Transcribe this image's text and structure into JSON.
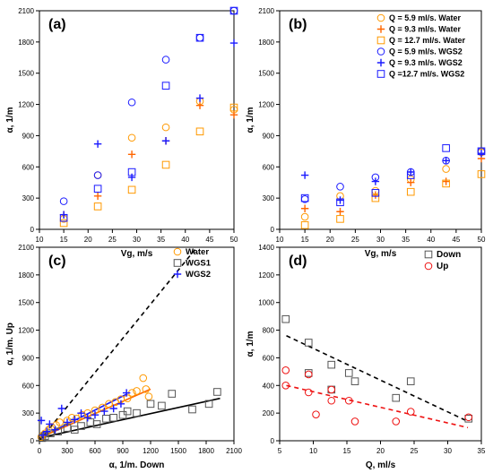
{
  "chart_data": [
    {
      "type": "scatter",
      "panel_label": "(a)",
      "xlabel": "Vg, m/s",
      "ylabel": "α, 1/m",
      "xlim": [
        10,
        50
      ],
      "ylim": [
        0,
        2100
      ],
      "xticks": [
        10,
        15,
        20,
        25,
        30,
        35,
        40,
        45,
        50
      ],
      "yticks": [
        0,
        300,
        600,
        900,
        1200,
        1500,
        1800,
        2100
      ],
      "series": [
        {
          "color": "#ff9900",
          "marker": "circle",
          "x": [
            15,
            22,
            29,
            36,
            43,
            50
          ],
          "y": [
            100,
            520,
            880,
            980,
            1230,
            1150
          ]
        },
        {
          "color": "#ff6600",
          "marker": "plus",
          "x": [
            15,
            22,
            29,
            36,
            43,
            50
          ],
          "y": [
            140,
            320,
            720,
            850,
            1190,
            1100
          ]
        },
        {
          "color": "#ff9900",
          "marker": "square",
          "x": [
            15,
            22,
            29,
            36,
            43,
            50
          ],
          "y": [
            60,
            220,
            380,
            620,
            940,
            1170
          ]
        },
        {
          "color": "#1a1aff",
          "marker": "circle",
          "x": [
            15,
            22,
            29,
            36,
            43,
            50
          ],
          "y": [
            270,
            520,
            1220,
            1630,
            1840,
            2100
          ]
        },
        {
          "color": "#1a1aff",
          "marker": "plus",
          "x": [
            15,
            22,
            29,
            36,
            43,
            50
          ],
          "y": [
            140,
            820,
            500,
            850,
            1260,
            1790
          ]
        },
        {
          "color": "#1a1aff",
          "marker": "square",
          "x": [
            15,
            22,
            29,
            36,
            43,
            50
          ],
          "y": [
            110,
            390,
            550,
            1380,
            1840,
            2100
          ]
        }
      ]
    },
    {
      "type": "scatter",
      "panel_label": "(b)",
      "xlabel": "Vg, m/s",
      "ylabel": "α, 1/m",
      "xlim": [
        10,
        50
      ],
      "ylim": [
        0,
        2100
      ],
      "xticks": [
        10,
        15,
        20,
        25,
        30,
        35,
        40,
        45,
        50
      ],
      "yticks": [
        0,
        300,
        600,
        900,
        1200,
        1500,
        1800,
        2100
      ],
      "legend_position": "top-right",
      "series": [
        {
          "name": "Q = 5.9 ml/s. Water",
          "color": "#ff9900",
          "marker": "circle",
          "x": [
            15,
            22,
            29,
            36,
            43,
            50
          ],
          "y": [
            120,
            320,
            370,
            480,
            580,
            740
          ]
        },
        {
          "name": "Q = 9.3 ml/s. Water",
          "color": "#ff6600",
          "marker": "plus",
          "x": [
            15,
            22,
            29,
            36,
            43,
            50
          ],
          "y": [
            200,
            170,
            330,
            450,
            460,
            680
          ]
        },
        {
          "name": "Q = 12.7 ml/s. Water",
          "color": "#ff9900",
          "marker": "square",
          "x": [
            15,
            22,
            29,
            36,
            43,
            50
          ],
          "y": [
            40,
            100,
            300,
            360,
            440,
            530
          ]
        },
        {
          "name": "Q = 5.9 ml/s. WGS2",
          "color": "#1a1aff",
          "marker": "circle",
          "x": [
            15,
            22,
            29,
            36,
            43,
            50
          ],
          "y": [
            290,
            410,
            500,
            550,
            660,
            750
          ]
        },
        {
          "name": "Q = 9.3 ml/s. WGS2",
          "color": "#1a1aff",
          "marker": "plus",
          "x": [
            15,
            22,
            29,
            36,
            43,
            50
          ],
          "y": [
            520,
            280,
            460,
            550,
            660,
            730
          ]
        },
        {
          "name": "Q =12.7 ml/s. WGS2",
          "color": "#1a1aff",
          "marker": "square",
          "x": [
            15,
            22,
            29,
            36,
            43,
            50
          ],
          "y": [
            300,
            260,
            350,
            520,
            780,
            750
          ]
        }
      ]
    },
    {
      "type": "scatter",
      "panel_label": "(c)",
      "xlabel": "α, 1/m. Down",
      "ylabel": "α, 1/m. Up",
      "xlim": [
        0,
        2100
      ],
      "ylim": [
        0,
        2100
      ],
      "xticks": [
        0,
        300,
        600,
        900,
        1200,
        1500,
        1800,
        2100
      ],
      "yticks": [
        0,
        300,
        600,
        900,
        1200,
        1500,
        1800,
        2100
      ],
      "legend_position": "top-right",
      "series": [
        {
          "name": "Water",
          "color": "#ff9900",
          "marker": "circle",
          "x": [
            20,
            40,
            60,
            100,
            130,
            180,
            220,
            300,
            350,
            400,
            460,
            520,
            600,
            680,
            750,
            820,
            880,
            950,
            1000,
            1050,
            1120,
            1150,
            1180
          ],
          "y": [
            40,
            60,
            80,
            120,
            150,
            170,
            200,
            220,
            250,
            240,
            280,
            300,
            330,
            360,
            400,
            420,
            450,
            460,
            520,
            540,
            680,
            560,
            480
          ]
        },
        {
          "name": "WGS1",
          "color": "#555555",
          "marker": "square",
          "x": [
            30,
            60,
            120,
            200,
            300,
            380,
            450,
            550,
            620,
            720,
            800,
            900,
            950,
            1050,
            1200,
            1320,
            1430,
            1650,
            1830,
            1920
          ],
          "y": [
            30,
            50,
            80,
            100,
            140,
            120,
            160,
            200,
            180,
            240,
            250,
            280,
            320,
            300,
            400,
            380,
            510,
            340,
            400,
            530
          ]
        },
        {
          "name": "WGS2",
          "color": "#1a1aff",
          "marker": "plus",
          "x": [
            20,
            40,
            80,
            110,
            170,
            240,
            300,
            380,
            450,
            520,
            600,
            700,
            800,
            880,
            940
          ],
          "y": [
            220,
            60,
            100,
            180,
            120,
            350,
            200,
            230,
            300,
            250,
            280,
            320,
            350,
            400,
            520
          ]
        }
      ],
      "lines": [
        {
          "style": "dashed",
          "color": "#000000",
          "x": [
            0,
            1700
          ],
          "y": [
            0,
            2100
          ]
        },
        {
          "style": "solid",
          "color": "#1a1aff",
          "x": [
            0,
            950
          ],
          "y": [
            30,
            510
          ]
        },
        {
          "style": "solid",
          "color": "#ff6600",
          "x": [
            0,
            1200
          ],
          "y": [
            30,
            560
          ]
        },
        {
          "style": "solid",
          "color": "#000000",
          "x": [
            0,
            1950
          ],
          "y": [
            30,
            460
          ]
        }
      ]
    },
    {
      "type": "scatter",
      "panel_label": "(d)",
      "xlabel": "Q, ml/s",
      "ylabel": "α, 1/m",
      "xlim": [
        5,
        35
      ],
      "ylim": [
        0,
        1400
      ],
      "xticks": [
        5,
        10,
        15,
        20,
        25,
        30,
        35
      ],
      "yticks": [
        0,
        200,
        400,
        600,
        800,
        1000,
        1200,
        1400
      ],
      "legend_position": "top-right",
      "series": [
        {
          "name": "Down",
          "color": "#555555",
          "marker": "square",
          "x": [
            5.9,
            9.3,
            9.3,
            12.7,
            12.7,
            15.3,
            16.2,
            22.3,
            24.5,
            33.1
          ],
          "y": [
            880,
            710,
            490,
            550,
            370,
            490,
            430,
            310,
            430,
            160
          ]
        },
        {
          "name": "Up",
          "color": "#ee1111",
          "marker": "circle",
          "x": [
            5.9,
            5.9,
            9.3,
            9.3,
            10.4,
            12.7,
            12.7,
            15.3,
            16.2,
            22.3,
            24.5,
            33.1
          ],
          "y": [
            510,
            400,
            480,
            350,
            190,
            370,
            290,
            290,
            140,
            140,
            210,
            170
          ]
        }
      ],
      "lines": [
        {
          "style": "dashed",
          "color": "#000000",
          "x": [
            6,
            33
          ],
          "y": [
            760,
            140
          ]
        },
        {
          "style": "dashed",
          "color": "#ee1111",
          "x": [
            6,
            33
          ],
          "y": [
            400,
            95
          ]
        }
      ]
    }
  ]
}
